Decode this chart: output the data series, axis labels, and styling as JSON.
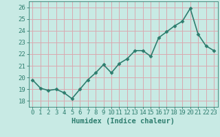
{
  "x": [
    0,
    1,
    2,
    3,
    4,
    5,
    6,
    7,
    8,
    9,
    10,
    11,
    12,
    13,
    14,
    15,
    16,
    17,
    18,
    19,
    20,
    21,
    22,
    23
  ],
  "y": [
    19.8,
    19.1,
    18.9,
    19.0,
    18.7,
    18.2,
    19.0,
    19.8,
    20.4,
    21.1,
    20.4,
    21.2,
    21.6,
    22.3,
    22.3,
    21.8,
    23.4,
    23.9,
    24.4,
    24.8,
    25.9,
    23.7,
    22.7,
    22.3
  ],
  "xlabel": "Humidex (Indice chaleur)",
  "xlim": [
    -0.5,
    23.5
  ],
  "ylim": [
    17.5,
    26.5
  ],
  "yticks": [
    18,
    19,
    20,
    21,
    22,
    23,
    24,
    25,
    26
  ],
  "xticks": [
    0,
    1,
    2,
    3,
    4,
    5,
    6,
    7,
    8,
    9,
    10,
    11,
    12,
    13,
    14,
    15,
    16,
    17,
    18,
    19,
    20,
    21,
    22,
    23
  ],
  "line_color": "#2d7d6e",
  "marker": "D",
  "marker_size": 2.5,
  "bg_color": "#c8eae4",
  "grid_color": "#d9a8b0",
  "tick_color": "#2d7d6e",
  "label_color": "#2d7d6e",
  "line_width": 1.2,
  "xlabel_fontsize": 7.5,
  "tick_fontsize": 6.5
}
